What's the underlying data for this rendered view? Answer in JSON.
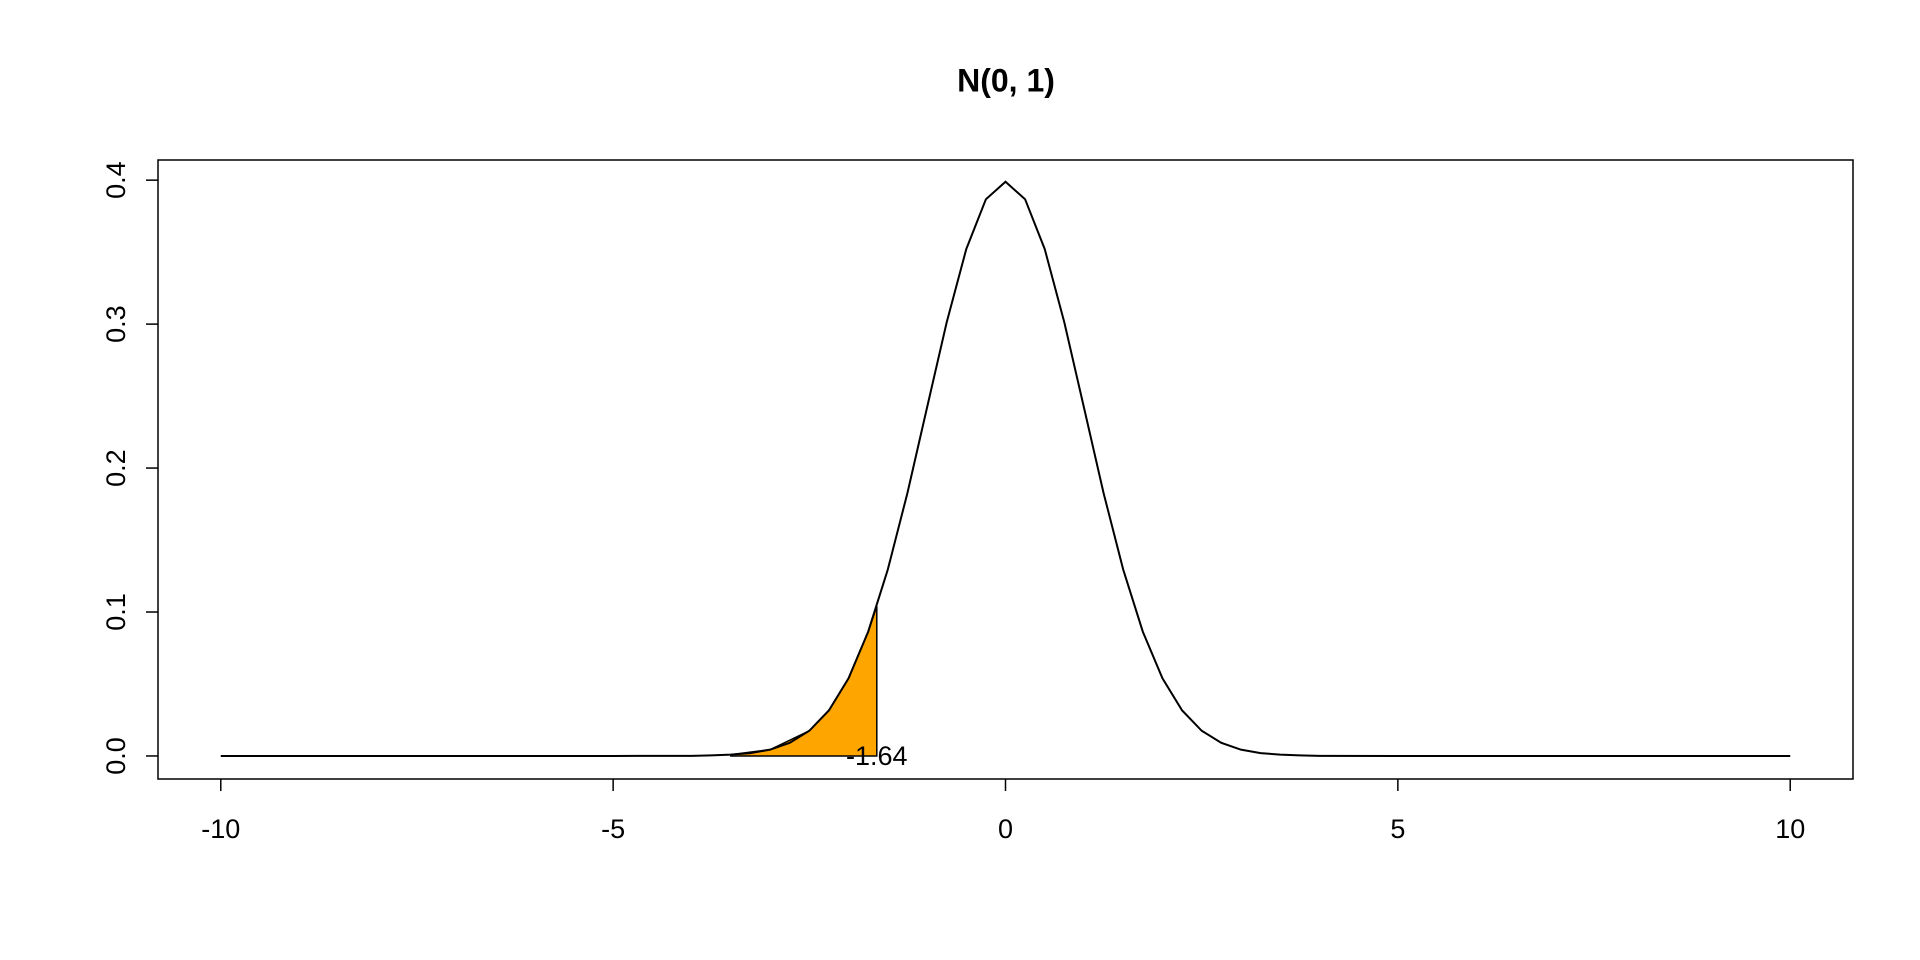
{
  "chart_data": {
    "type": "line",
    "title": "N(0, 1)",
    "x": [
      -10,
      -8,
      -6,
      -5,
      -4,
      -3.75,
      -3.5,
      -3.25,
      -3,
      -2.75,
      -2.5,
      -2.25,
      -2,
      -1.75,
      -1.5,
      -1.25,
      -1,
      -0.75,
      -0.5,
      -0.25,
      0,
      0.25,
      0.5,
      0.75,
      1,
      1.25,
      1.5,
      1.75,
      2,
      2.25,
      2.5,
      2.75,
      3,
      3.25,
      3.5,
      3.75,
      4,
      5,
      6,
      8,
      10
    ],
    "series": [
      {
        "color": "#000000",
        "values": [
          0,
          0,
          0,
          0,
          0.0001,
          0.0004,
          0.0009,
          0.002,
          0.0044,
          0.0091,
          0.0175,
          0.0317,
          0.054,
          0.0863,
          0.1295,
          0.1826,
          0.242,
          0.3011,
          0.3521,
          0.3867,
          0.3989,
          0.3867,
          0.3521,
          0.3011,
          0.242,
          0.1826,
          0.1295,
          0.0863,
          0.054,
          0.0317,
          0.0175,
          0.0091,
          0.0044,
          0.002,
          0.0009,
          0.0004,
          0.0001,
          0,
          0,
          0,
          0
        ]
      }
    ],
    "shade": {
      "color": "#ffa500",
      "x": [
        -3.5,
        -3,
        -2.5,
        -2.25,
        -2,
        -1.75,
        -1.64
      ],
      "values": [
        0.0009,
        0.0044,
        0.0175,
        0.0317,
        0.054,
        0.0863,
        0.104
      ]
    },
    "annotation": {
      "text": "-1.64",
      "x": -1.64,
      "y": 0
    },
    "xlim": [
      -10.8,
      10.8
    ],
    "xticks": [
      -10,
      -5,
      0,
      5,
      10
    ],
    "ylim": [
      -0.016,
      0.414
    ],
    "yticks": [
      {
        "value": 0,
        "label": "0.0"
      },
      0.1,
      0.2,
      0.3,
      0.4
    ]
  }
}
